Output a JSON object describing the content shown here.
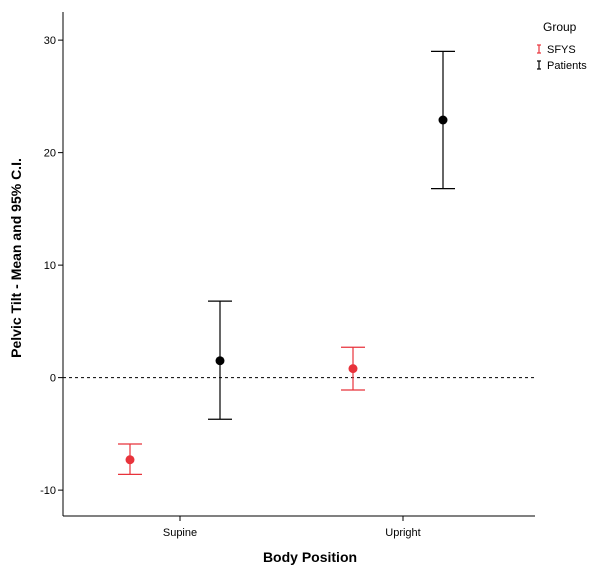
{
  "chart_data": {
    "type": "scatter",
    "xlabel": "Body Position",
    "ylabel": "Pelvic Tilt - Mean and 95% C.I.",
    "categories": [
      "Supine",
      "Upright"
    ],
    "ylim": [
      -12.3,
      32.5
    ],
    "yticks": [
      -10,
      0,
      10,
      20,
      30
    ],
    "reference_line": {
      "y": 0,
      "style": "dashed"
    },
    "legend": {
      "title": "Group",
      "position": "top-right"
    },
    "series": [
      {
        "name": "SFYS",
        "color": "#e8333b",
        "points": [
          {
            "category": "Supine",
            "mean": -7.3,
            "lower": -8.6,
            "upper": -5.9
          },
          {
            "category": "Upright",
            "mean": 0.8,
            "lower": -1.1,
            "upper": 2.7
          }
        ]
      },
      {
        "name": "Patients",
        "color": "#000000",
        "points": [
          {
            "category": "Supine",
            "mean": 1.5,
            "lower": -3.7,
            "upper": 6.8
          },
          {
            "category": "Upright",
            "mean": 22.9,
            "lower": 16.8,
            "upper": 29.0
          }
        ]
      }
    ]
  }
}
